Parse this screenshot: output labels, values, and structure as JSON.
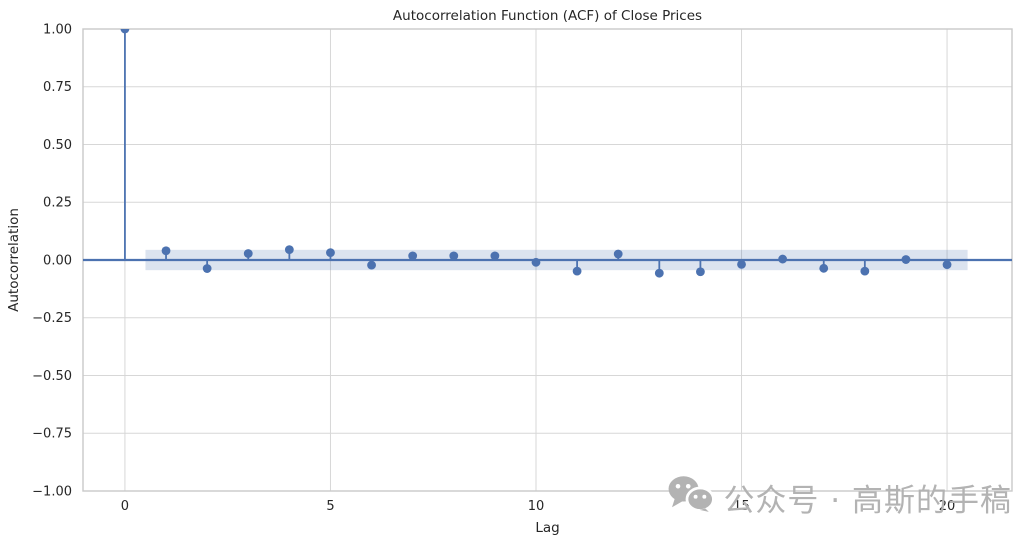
{
  "chart": {
    "title": "Autocorrelation Function (ACF) of Close Prices",
    "xlabel": "Lag",
    "ylabel": "Autocorrelation"
  },
  "watermark": {
    "icon": "wechat-icon",
    "text": "公众号 · 高斯的手稿"
  },
  "colors": {
    "accent_blue": "#4C72B0",
    "band_fill": "#4C72B0",
    "band_opacity": 0.2,
    "grid": "#d7d7d7",
    "spine": "#c9c9c9",
    "text": "#262626",
    "watermark_gray": "#b3b3b3"
  },
  "chart_data": {
    "type": "scatter",
    "style": "stem-acf",
    "title": "Autocorrelation Function (ACF) of Close Prices",
    "xlabel": "Lag",
    "ylabel": "Autocorrelation",
    "grid": true,
    "legend": false,
    "xlim": [
      -1.02,
      21.58
    ],
    "ylim": [
      -1.0,
      1.0
    ],
    "x": [
      0,
      1,
      2,
      3,
      4,
      5,
      6,
      7,
      8,
      9,
      10,
      11,
      12,
      13,
      14,
      15,
      16,
      17,
      18,
      19,
      20
    ],
    "values": [
      1.0,
      0.04,
      -0.037,
      0.028,
      0.045,
      0.032,
      -0.022,
      0.018,
      0.018,
      0.018,
      -0.01,
      -0.048,
      0.026,
      -0.057,
      -0.051,
      -0.019,
      0.004,
      -0.036,
      -0.048,
      0.002,
      -0.02
    ],
    "confidence_band": {
      "lower": -0.044,
      "upper": 0.044,
      "x_start": 0.5,
      "x_end": 20.5
    },
    "zero_line": 0.0,
    "xticks": [
      {
        "value": 0,
        "label": "0"
      },
      {
        "value": 5,
        "label": "5"
      },
      {
        "value": 10,
        "label": "10"
      },
      {
        "value": 15,
        "label": "15"
      },
      {
        "value": 20,
        "label": "20"
      }
    ],
    "yticks": [
      {
        "value": 1.0,
        "label": "1.00"
      },
      {
        "value": 0.75,
        "label": "0.75"
      },
      {
        "value": 0.5,
        "label": "0.50"
      },
      {
        "value": 0.25,
        "label": "0.25"
      },
      {
        "value": 0.0,
        "label": "0.00"
      },
      {
        "value": -0.25,
        "label": "−0.25"
      },
      {
        "value": -0.5,
        "label": "−0.50"
      },
      {
        "value": -0.75,
        "label": "−0.75"
      },
      {
        "value": -1.0,
        "label": "−1.00"
      }
    ]
  }
}
